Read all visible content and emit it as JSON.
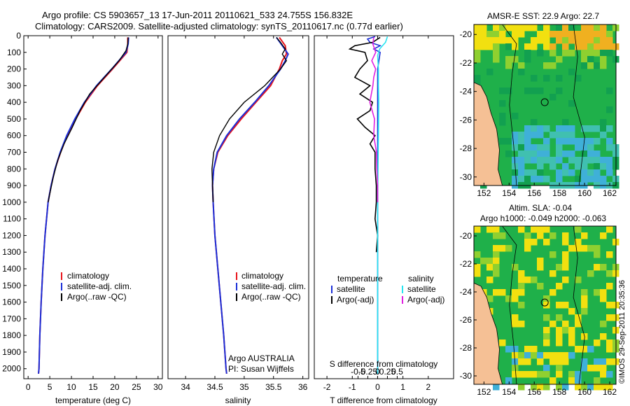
{
  "header": {
    "line1": "Argo profile: CS 5903657_13 17-Jun-2011 20110621_533 24.755S 156.832E",
    "line2": "Climatology: CARS2009. Satellite-adjusted climatology: synTS_20110617.nc (0.77d earlier)"
  },
  "side_label": "©IMOS 29-Sep-2011 20:35:36",
  "colors": {
    "climatology": "#e8141c",
    "satellite": "#1b2fd8",
    "argo": "#000000",
    "salinity_sat": "#25e4f0",
    "salinity_argo": "#e020e0",
    "land": "#f5c095",
    "sea_green": "#1fb04a",
    "warm": "#f2e010",
    "cool": "#3fb0d8"
  },
  "chart_data": [
    {
      "id": "temperature",
      "type": "line",
      "xlabel": "temperature (deg C)",
      "xlim": [
        -1,
        31
      ],
      "xticks": [
        "0",
        "5",
        "10",
        "15",
        "20",
        "25",
        "30"
      ],
      "ylim": [
        2060,
        0
      ],
      "yticks": [
        "0",
        "100",
        "200",
        "300",
        "400",
        "500",
        "600",
        "700",
        "800",
        "900",
        "1000",
        "1100",
        "1200",
        "1300",
        "1400",
        "1500",
        "1600",
        "1700",
        "1800",
        "1900",
        "2000"
      ],
      "legend": [
        "climatology",
        "satellite-adj. clim.",
        "Argo(..raw -QC)"
      ],
      "series": [
        {
          "name": "climatology",
          "depth": [
            10,
            50,
            100,
            200,
            300,
            400,
            500,
            600,
            700,
            800,
            900,
            1000,
            1200,
            1400,
            1600,
            1800,
            2000,
            2030
          ],
          "values": [
            23,
            23,
            22.8,
            19.5,
            16,
            13.2,
            11,
            9,
            7.5,
            6.2,
            5.3,
            4.6,
            3.9,
            3.4,
            3.0,
            2.7,
            2.5,
            2.4
          ]
        },
        {
          "name": "satellite",
          "depth": [
            10,
            50,
            100,
            200,
            300,
            400,
            500,
            600,
            700,
            800,
            900,
            1000,
            1200,
            1400,
            1600,
            1800,
            2000,
            2030
          ],
          "values": [
            23.2,
            23.1,
            22.6,
            19.3,
            15.8,
            13,
            10.8,
            8.9,
            7.4,
            6.2,
            5.3,
            4.6,
            3.9,
            3.4,
            3.0,
            2.7,
            2.5,
            2.4
          ]
        },
        {
          "name": "argo",
          "depth": [
            10,
            50,
            90,
            150,
            250,
            350,
            450,
            550,
            650,
            750,
            850,
            950,
            1000
          ],
          "values": [
            23.1,
            23.0,
            22.6,
            21,
            17.6,
            14.2,
            12,
            10.2,
            8.3,
            6.8,
            5.8,
            5.0,
            4.6
          ]
        }
      ]
    },
    {
      "id": "salinity",
      "type": "line",
      "xlabel": "salinity",
      "xlim": [
        33.7,
        36.1
      ],
      "xticks": [
        "34",
        "34.5",
        "35",
        "35.5",
        "36"
      ],
      "ylim": [
        2060,
        0
      ],
      "legend": [
        "climatology",
        "satellite-adj. clim.",
        "Argo(..raw -QC)"
      ],
      "credit": [
        "Argo AUSTRALIA",
        "PI: Susan Wijffels"
      ],
      "series": [
        {
          "name": "climatology",
          "depth": [
            10,
            60,
            110,
            150,
            200,
            300,
            400,
            500,
            600,
            700,
            800,
            900,
            1000,
            1200,
            1400,
            1600,
            1800,
            2000,
            2030
          ],
          "values": [
            35.6,
            35.7,
            35.72,
            35.65,
            35.6,
            35.45,
            35.2,
            34.95,
            34.72,
            34.55,
            34.48,
            34.46,
            34.47,
            34.5,
            34.55,
            34.6,
            34.65,
            34.69,
            34.7
          ]
        },
        {
          "name": "satellite",
          "depth": [
            10,
            60,
            110,
            150,
            200,
            300,
            400,
            500,
            600,
            700,
            800,
            900,
            1000,
            1200,
            1400,
            1600,
            1800,
            2000,
            2030
          ],
          "values": [
            35.55,
            35.65,
            35.75,
            35.7,
            35.62,
            35.42,
            35.18,
            34.92,
            34.7,
            34.54,
            34.48,
            34.46,
            34.47,
            34.5,
            34.55,
            34.6,
            34.65,
            34.69,
            34.7
          ]
        },
        {
          "name": "argo",
          "depth": [
            10,
            40,
            80,
            110,
            150,
            200,
            300,
            400,
            500,
            600,
            700,
            800,
            900,
            1000
          ],
          "values": [
            35.55,
            35.62,
            35.7,
            35.65,
            35.72,
            35.62,
            35.35,
            35.0,
            34.75,
            34.58,
            34.48,
            34.45,
            34.46,
            34.47
          ]
        }
      ]
    },
    {
      "id": "differences",
      "type": "line",
      "xlabel": "T difference from climatology",
      "xlabel2": "S difference from climatology",
      "xlim": [
        -2.5,
        3.0
      ],
      "xticks": [
        "-2",
        "-1",
        "0",
        "1",
        "2"
      ],
      "sticks": [
        "-0.5",
        "-0.25",
        "0",
        "0.25",
        "0.5"
      ],
      "legend_left": [
        "temperature",
        "satellite",
        "Argo(-adj)"
      ],
      "legend_right": [
        "salinity",
        "satellite",
        "Argo(-adj)"
      ],
      "series": [
        {
          "name": "T satellite",
          "depth": [
            5,
            20,
            40,
            60,
            80,
            100,
            150,
            200,
            300,
            500,
            700,
            1000,
            1500,
            2030
          ],
          "values": [
            -0.1,
            -0.4,
            -0.3,
            0.1,
            -0.15,
            0.1,
            0.05,
            0.0,
            0.0,
            0.0,
            0.0,
            0.0,
            0.0,
            0.0
          ]
        },
        {
          "name": "T argo",
          "depth": [
            10,
            40,
            60,
            80,
            100,
            150,
            200,
            250,
            300,
            350,
            400,
            450,
            500,
            550,
            600,
            650,
            700,
            800,
            900,
            1000,
            1100,
            1200,
            1300
          ],
          "values": [
            0.1,
            -0.2,
            -0.9,
            -1.1,
            -0.5,
            -0.4,
            -0.7,
            -0.9,
            -0.3,
            -0.7,
            -0.2,
            -0.3,
            -0.8,
            -0.5,
            -0.1,
            -0.3,
            -0.1,
            -0.1,
            -0.05,
            -0.05,
            -0.1,
            0.0,
            -0.05
          ]
        },
        {
          "name": "S satellite",
          "depth": [
            5,
            40,
            80,
            120,
            200,
            300,
            400,
            600,
            800,
            1000,
            1500,
            2030
          ],
          "values": [
            0.25,
            0.2,
            0.05,
            0.0,
            0.02,
            0.02,
            0.03,
            0.02,
            0.01,
            0.0,
            0.0,
            0.0
          ]
        },
        {
          "name": "S argo",
          "depth": [
            10,
            50,
            100,
            150,
            200,
            250,
            300,
            400,
            500,
            600,
            700,
            800,
            900,
            1000
          ],
          "values": [
            -0.1,
            -0.12,
            -0.05,
            -0.15,
            -0.05,
            -0.1,
            -0.12,
            -0.2,
            -0.08,
            -0.1,
            -0.03,
            -0.02,
            0.0,
            0.0
          ]
        }
      ]
    },
    {
      "id": "sst_map",
      "type": "heatmap",
      "title": "AMSR-E SST: 22.9 Argo: 22.7",
      "xticks": [
        "152",
        "154",
        "156",
        "158",
        "160",
        "162"
      ],
      "yticks": [
        "-20",
        "-22",
        "-24",
        "-26",
        "-28",
        "-30"
      ],
      "xlim": [
        151.2,
        162.5
      ],
      "ylim": [
        -30.6,
        -19.3
      ]
    },
    {
      "id": "sla_map",
      "type": "heatmap",
      "title": "Altim. SLA: -0.04",
      "subtitle": "Argo h1000: -0.049 h2000: -0.063",
      "xticks": [
        "152",
        "154",
        "156",
        "158",
        "160",
        "162"
      ],
      "yticks": [
        "-20",
        "-22",
        "-24",
        "-26",
        "-28",
        "-30"
      ],
      "xlim": [
        151.2,
        162.5
      ],
      "ylim": [
        -30.6,
        -19.3
      ]
    }
  ]
}
